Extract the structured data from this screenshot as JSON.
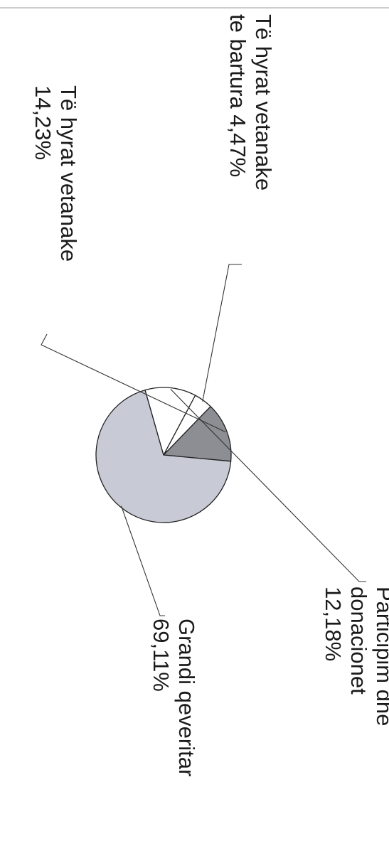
{
  "chart_data": {
    "type": "pie",
    "slices": [
      {
        "label_lines": [
          "Të hyrat vetanake",
          "te bartura  4,47%"
        ],
        "value": 4.47,
        "color": "#ffffff"
      },
      {
        "label_lines": [
          "Të hyrat vetanake",
          "14,23%"
        ],
        "value": 14.23,
        "color": "#8c8e94"
      },
      {
        "label_lines": [
          "Grandi qeveritar",
          "69,11%"
        ],
        "value": 69.11,
        "color": "#c8cbd6"
      },
      {
        "label_lines": [
          "Participim dhe",
          "donacionet",
          "12,18%"
        ],
        "value": 12.18,
        "color": "#ffffff"
      }
    ]
  }
}
